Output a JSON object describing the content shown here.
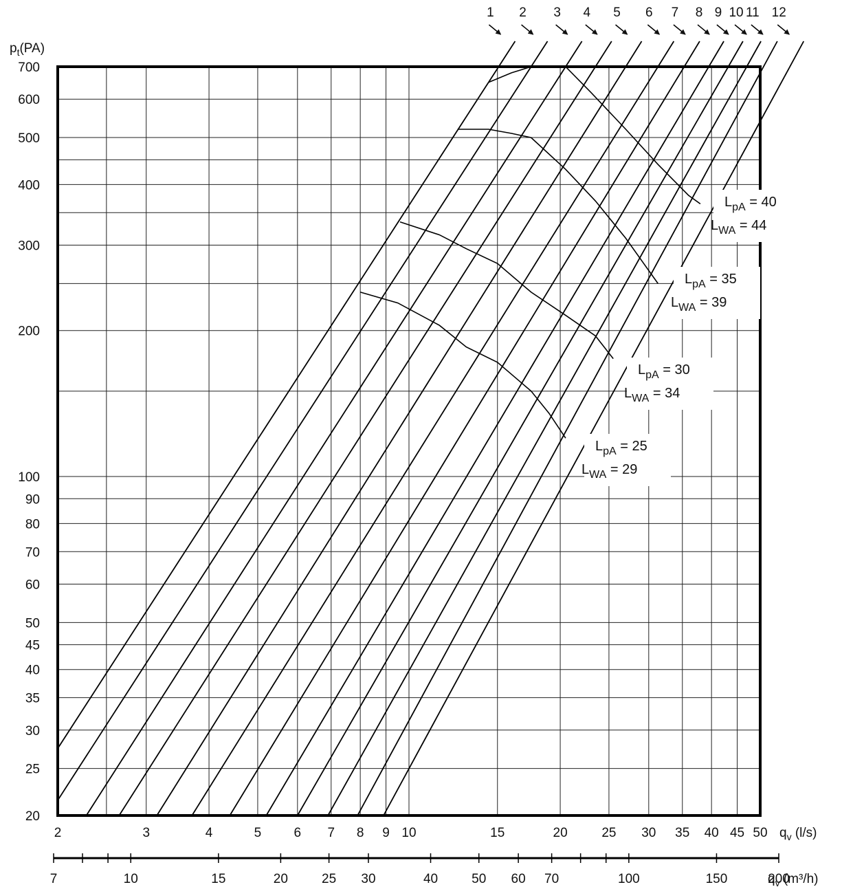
{
  "chart_data": {
    "type": "line",
    "title": "",
    "ylabel": "p",
    "ylabel_sub": "t",
    "ylabel_unit": "(PA)",
    "xlabel_ls": "q",
    "xlabel_ls_sub": "v",
    "xlabel_ls_unit": " (l/s)",
    "xlabel_m3h": "q",
    "xlabel_m3h_sub": "v",
    "xlabel_m3h_unit": " (m³/h)",
    "x_scale": "log",
    "y_scale": "log",
    "xlim": [
      2,
      50
    ],
    "ylim": [
      20,
      700
    ],
    "grid": true,
    "y_ticks": [
      20,
      25,
      30,
      35,
      40,
      45,
      50,
      60,
      70,
      80,
      90,
      100,
      200,
      300,
      400,
      500,
      600,
      700
    ],
    "y_tick_labels": [
      "20",
      "25",
      "30",
      "35",
      "40",
      "45",
      "50",
      "60",
      "70",
      "80",
      "90",
      "100",
      "200",
      "300",
      "400",
      "500",
      "600",
      "700"
    ],
    "y_extra_gridlines": [
      150,
      250,
      350,
      450
    ],
    "x_ticks_ls": [
      2,
      3,
      4,
      5,
      6,
      7,
      8,
      9,
      10,
      15,
      20,
      25,
      30,
      35,
      40,
      45,
      50
    ],
    "x_tick_labels_ls": [
      "2",
      "3",
      "4",
      "5",
      "6",
      "7",
      "8",
      "9",
      "10",
      "15",
      "20",
      "25",
      "30",
      "35",
      "40",
      "45",
      "50"
    ],
    "x_extra_gridlines_ls": [
      2.5
    ],
    "x_ticks_m3h": [
      7,
      10,
      15,
      20,
      25,
      30,
      40,
      50,
      60,
      70,
      100,
      150,
      200
    ],
    "x_tick_labels_m3h": [
      "7",
      "10",
      "15",
      "20",
      "25",
      "30",
      "40",
      "50",
      "60",
      "70",
      "100",
      "150",
      "200"
    ],
    "x_minor_ticks_m3h": [
      8,
      9,
      80,
      90
    ],
    "damper_curves": [
      {
        "label": "1",
        "from": [
          2.0,
          27.5
        ],
        "to": [
          14.4,
          650
        ]
      },
      {
        "label": "2",
        "from": [
          2.0,
          21.5
        ],
        "to": [
          17.5,
          700
        ]
      },
      {
        "label": "3",
        "from": [
          2.28,
          20
        ],
        "to": [
          20.5,
          700
        ]
      },
      {
        "label": "4",
        "from": [
          2.65,
          20
        ],
        "to": [
          23.5,
          700
        ]
      },
      {
        "label": "5",
        "from": [
          3.15,
          20
        ],
        "to": [
          27.0,
          700
        ]
      },
      {
        "label": "6",
        "from": [
          3.7,
          20
        ],
        "to": [
          31.3,
          700
        ]
      },
      {
        "label": "7",
        "from": [
          4.4,
          20
        ],
        "to": [
          35.3,
          700
        ]
      },
      {
        "label": "8",
        "from": [
          5.2,
          20
        ],
        "to": [
          39.5,
          700
        ]
      },
      {
        "label": "9",
        "from": [
          6.0,
          20
        ],
        "to": [
          43.2,
          700
        ]
      },
      {
        "label": "10",
        "from": [
          6.9,
          20
        ],
        "to": [
          47.0,
          700
        ]
      },
      {
        "label": "11",
        "from": [
          7.9,
          20
        ],
        "to": [
          50.0,
          680
        ]
      },
      {
        "label": "12",
        "from": [
          8.9,
          20
        ],
        "to": [
          50.0,
          540
        ]
      }
    ],
    "sound_curves": [
      {
        "lpa": "40",
        "lwa": "44",
        "points": [
          [
            14.4,
            650
          ],
          [
            16.0,
            680
          ],
          [
            17.5,
            700
          ],
          [
            20.5,
            700
          ],
          [
            23.0,
            620
          ],
          [
            27.0,
            520
          ],
          [
            31.3,
            440
          ],
          [
            36.0,
            380
          ],
          [
            38.0,
            365
          ]
        ]
      },
      {
        "lpa": "35",
        "lwa": "39",
        "points": [
          [
            12.5,
            520
          ],
          [
            14.4,
            520
          ],
          [
            16.0,
            510
          ],
          [
            17.5,
            500
          ],
          [
            20.5,
            430
          ],
          [
            23.5,
            370
          ],
          [
            27.0,
            310
          ],
          [
            31.3,
            250
          ]
        ]
      },
      {
        "lpa": "30",
        "lwa": "34",
        "points": [
          [
            9.6,
            335
          ],
          [
            11.5,
            315
          ],
          [
            13.0,
            295
          ],
          [
            15.0,
            275
          ],
          [
            17.5,
            240
          ],
          [
            20.5,
            215
          ],
          [
            23.5,
            195
          ],
          [
            25.5,
            175
          ]
        ]
      },
      {
        "lpa": "25",
        "lwa": "29",
        "points": [
          [
            8.0,
            240
          ],
          [
            9.5,
            228
          ],
          [
            11.5,
            205
          ],
          [
            13.0,
            185
          ],
          [
            15.0,
            172
          ],
          [
            17.5,
            150
          ],
          [
            19.0,
            135
          ],
          [
            20.5,
            120
          ]
        ]
      }
    ],
    "sound_labels": [
      {
        "lpa_text": "L",
        "lpa_sub": "pA",
        "lpa_value": " = 40",
        "lwa_text": "L",
        "lwa_sub": "WA",
        "lwa_value": " = 44"
      },
      {
        "lpa_text": "L",
        "lpa_sub": "pA",
        "lpa_value": " = 35",
        "lwa_text": "L",
        "lwa_sub": "WA",
        "lwa_value": " = 39"
      },
      {
        "lpa_text": "L",
        "lpa_sub": "pA",
        "lpa_value": " = 30",
        "lwa_text": "L",
        "lwa_sub": "WA",
        "lwa_value": " = 34"
      },
      {
        "lpa_text": "L",
        "lpa_sub": "pA",
        "lpa_value": " = 25",
        "lwa_text": "L",
        "lwa_sub": "WA",
        "lwa_value": " = 29"
      }
    ]
  }
}
